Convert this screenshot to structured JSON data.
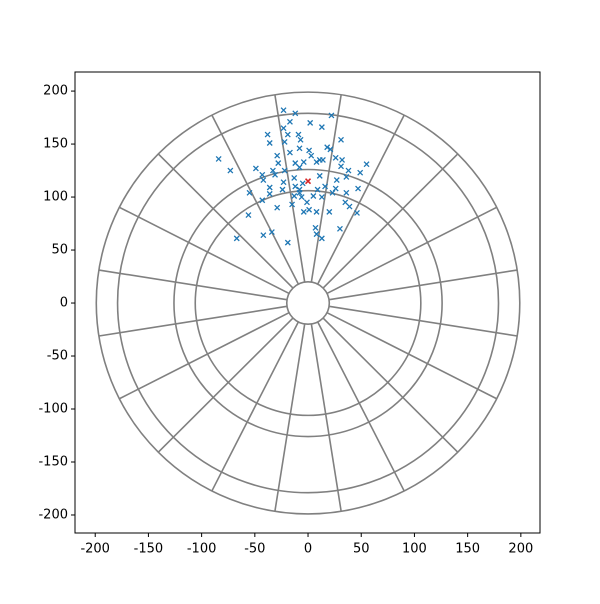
{
  "chart_data": {
    "type": "scatter",
    "xlim": [
      -219,
      218
    ],
    "ylim": [
      -217,
      218
    ],
    "xticks": [
      -200,
      -150,
      -100,
      -50,
      0,
      50,
      100,
      150,
      200
    ],
    "yticks": [
      -200,
      -150,
      -100,
      -50,
      0,
      50,
      100,
      150,
      200
    ],
    "grid": false,
    "board": {
      "ring_radii": [
        20,
        106,
        126,
        179,
        199
      ],
      "sectors": 20,
      "sector_offset_deg": 9,
      "color": "#808080"
    },
    "series": [
      {
        "color": "#1f77b4",
        "marker": "x",
        "x": [
          -23,
          -12,
          22,
          -17,
          2,
          13,
          -23,
          -38,
          -19,
          -9,
          31,
          -36,
          -22,
          -7,
          -8,
          18,
          21,
          1,
          -84,
          -29,
          -17,
          3,
          11,
          26,
          32,
          -28,
          -12,
          -4,
          8,
          14,
          55,
          -73,
          -49,
          -33,
          -22,
          -8,
          31,
          38,
          -43,
          -31,
          -13,
          11,
          49,
          -42,
          -23,
          -12,
          -5,
          27,
          36,
          -36,
          -24,
          -8,
          16,
          26,
          47,
          -55,
          -36,
          -13,
          -8,
          9,
          36,
          -43,
          -6,
          -1,
          13,
          23,
          35,
          -29,
          1,
          8,
          20,
          46,
          -56,
          -4,
          7,
          8,
          30,
          -42,
          -34,
          13,
          -67,
          -19,
          5,
          39,
          -15
        ],
        "y": [
          182,
          179,
          177,
          171,
          170,
          166,
          165,
          159,
          159,
          159,
          154,
          151,
          152,
          154,
          146,
          147,
          145,
          144,
          136,
          139,
          142,
          139,
          135,
          137,
          135,
          132,
          132,
          133,
          133,
          135,
          131,
          125,
          127,
          125,
          125,
          128,
          129,
          125,
          121,
          121,
          118,
          120,
          123,
          116,
          114,
          110,
          113,
          116,
          119,
          109,
          107,
          107,
          110,
          108,
          108,
          104,
          103,
          101,
          104,
          107,
          104,
          97,
          100,
          95,
          100,
          104,
          95,
          90,
          88,
          86,
          86,
          85,
          83,
          86,
          71,
          65,
          70,
          64,
          67,
          61,
          61,
          57,
          101,
          91,
          93
        ]
      },
      {
        "color": "#d62728",
        "marker": "x",
        "x": [
          0
        ],
        "y": [
          115
        ]
      }
    ]
  }
}
